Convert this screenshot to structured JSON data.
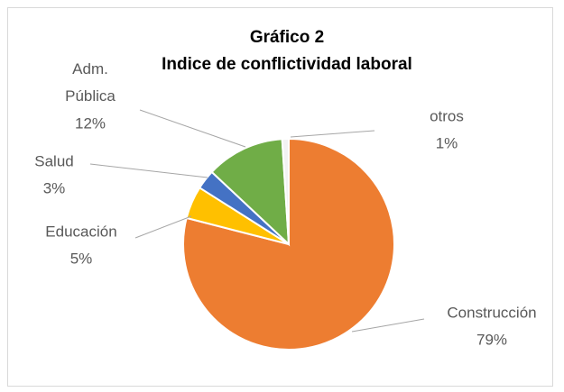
{
  "chart_data": {
    "type": "pie",
    "title": "Gráfico 2",
    "subtitle": "Indice de conflictividad laboral",
    "categories": [
      "Construcción",
      "Educación",
      "Salud",
      "Adm. Pública",
      "otros"
    ],
    "values": [
      79,
      5,
      3,
      12,
      1
    ],
    "value_labels": [
      "79%",
      "5%",
      "3%",
      "12%",
      "1%"
    ],
    "colors": [
      "#ed7d31",
      "#ffc000",
      "#4472c4",
      "#70ad47",
      "#f2f2f2"
    ]
  }
}
